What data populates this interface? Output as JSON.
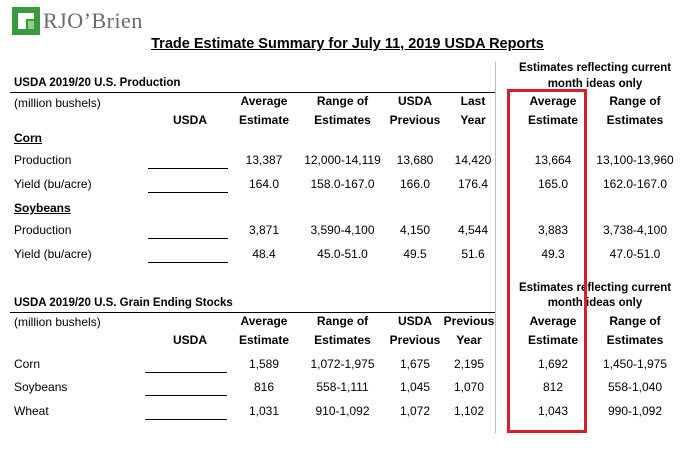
{
  "logo": {
    "text": "RJO’Brien"
  },
  "title": "Trade Estimate Summary for July 11, 2019 USDA Reports",
  "production": {
    "section_title": "USDA 2019/20 U.S. Production",
    "units": "(million bushels)",
    "right_note_line1": "Estimates reflecting current",
    "right_note_line2": "month ideas only",
    "headers": {
      "usda": "USDA",
      "avg1": "Average",
      "avg2": "Estimate",
      "range1": "Range of",
      "range2": "Estimates",
      "prev1": "USDA",
      "prev2": "Previous",
      "last1": "Last",
      "last2": "Year",
      "cavg1": "Average",
      "cavg2": "Estimate",
      "crange1": "Range of",
      "crange2": "Estimates"
    },
    "corn_label": "Corn",
    "soy_label": "Soybeans",
    "rows": [
      {
        "label": "Production",
        "avg": "13,387",
        "range": "12,000-14,119",
        "prev": "13,680",
        "last": "14,420",
        "cur_avg": "13,664",
        "cur_range": "13,100-13,960"
      },
      {
        "label": "Yield (bu/acre)",
        "avg": "164.0",
        "range": "158.0-167.0",
        "prev": "166.0",
        "last": "176.4",
        "cur_avg": "165.0",
        "cur_range": "162.0-167.0"
      },
      {
        "label": "Production",
        "avg": "3,871",
        "range": "3,590-4,100",
        "prev": "4,150",
        "last": "4,544",
        "cur_avg": "3,883",
        "cur_range": "3,738-4,100"
      },
      {
        "label": "Yield (bu/acre)",
        "avg": "48.4",
        "range": "45.0-51.0",
        "prev": "49.5",
        "last": "51.6",
        "cur_avg": "49.3",
        "cur_range": "47.0-51.0"
      }
    ]
  },
  "stocks": {
    "section_title": "USDA 2019/20 U.S. Grain Ending Stocks",
    "units": "(million bushels)",
    "right_note_line1": "Estimates reflecting current",
    "right_note_line2": "month ideas only",
    "headers": {
      "usda": "USDA",
      "avg1": "Average",
      "avg2": "Estimate",
      "range1": "Range of",
      "range2": "Estimates",
      "prev1": "USDA",
      "prev2": "Previous",
      "last1": "Previous",
      "last2": "Year",
      "cavg1": "Average",
      "cavg2": "Estimate",
      "crange1": "Range of",
      "crange2": "Estimates"
    },
    "rows": [
      {
        "label": "Corn",
        "avg": "1,589",
        "range": "1,072-1,975",
        "prev": "1,675",
        "last": "2,195",
        "cur_avg": "1,692",
        "cur_range": "1,450-1,975"
      },
      {
        "label": "Soybeans",
        "avg": "816",
        "range": "558-1,111",
        "prev": "1,045",
        "last": "1,070",
        "cur_avg": "812",
        "cur_range": "558-1,040"
      },
      {
        "label": "Wheat",
        "avg": "1,031",
        "range": "910-1,092",
        "prev": "1,072",
        "last": "1,102",
        "cur_avg": "1,043",
        "cur_range": "990-1,092"
      }
    ]
  },
  "colors": {
    "highlight_box": "#d61f2a",
    "logo_green": "#3a9a3e",
    "logo_gray": "#6b6b6b"
  }
}
